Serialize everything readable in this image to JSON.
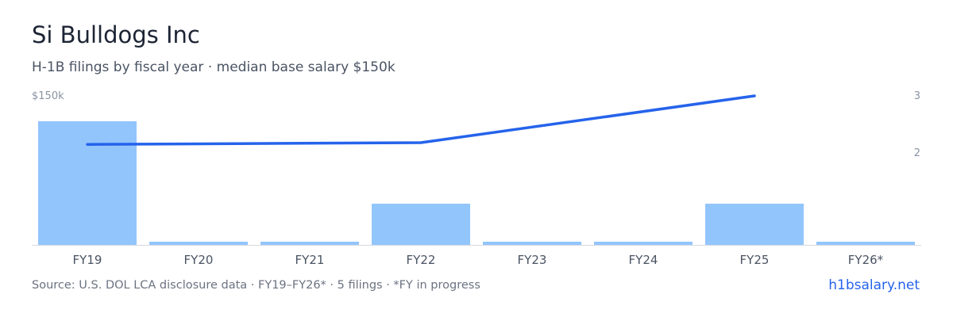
{
  "header": {
    "title": "Si Bulldogs Inc",
    "subtitle": "H-1B filings by fiscal year · median base salary $150k"
  },
  "footer": {
    "source": "Source: U.S. DOL LCA disclosure data · FY19–FY26* · 5 filings · *FY in progress",
    "link": "h1bsalary.net"
  },
  "colors": {
    "bar": "#93c5fd",
    "line": "#2563eb",
    "axis_text": "#8a93a3",
    "tick_text": "#4a5363",
    "baseline": "#d5d9e0"
  },
  "chart_data": {
    "type": "bar",
    "categories": [
      "FY19",
      "FY20",
      "FY21",
      "FY22",
      "FY23",
      "FY24",
      "FY25",
      "FY26*"
    ],
    "series": [
      {
        "type": "bar",
        "axis": "left",
        "values": [
          3,
          0,
          0,
          1,
          0,
          0,
          1,
          0
        ]
      },
      {
        "type": "line",
        "axis": "right",
        "values": [
          2.15,
          null,
          null,
          2.18,
          null,
          null,
          3,
          null
        ]
      }
    ],
    "left_axis": {
      "tick_label": "$150k",
      "range": [
        0,
        3
      ]
    },
    "right_axis": {
      "ticks": [
        "3",
        "2"
      ],
      "range": [
        0.5,
        3
      ]
    },
    "grid": false,
    "legend": "none"
  }
}
